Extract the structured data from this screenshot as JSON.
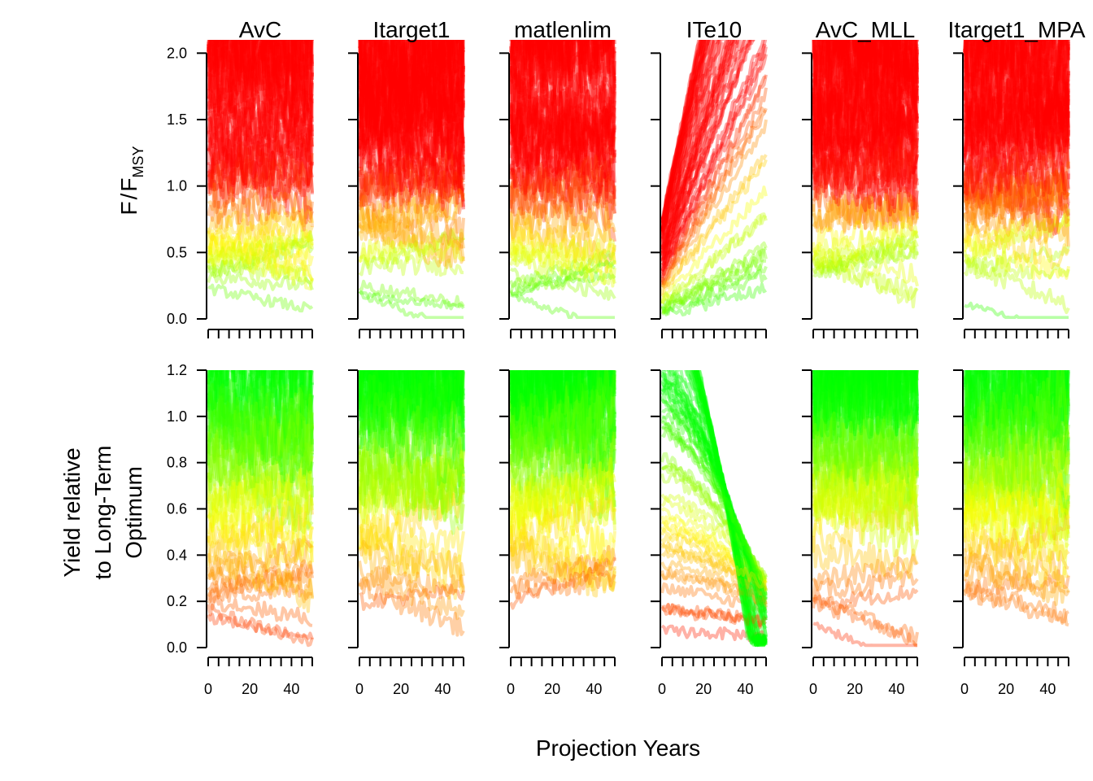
{
  "chart_data": {
    "type": "line",
    "xlabel": "Projection Years",
    "x_ticks": [
      0,
      20,
      40
    ],
    "x_minor_ticks": [
      0,
      5,
      10,
      15,
      20,
      25,
      30,
      35,
      40,
      45,
      50
    ],
    "xlim": [
      0,
      50
    ],
    "panels": [
      "AvC",
      "Itarget1",
      "matlenlim",
      "ITe10",
      "AvC_MLL",
      "Itarget1_MPA"
    ],
    "rows": [
      {
        "id": "f_fmsy",
        "ylabel_main": "F",
        "ylabel_slash": "/",
        "ylabel_f": "F",
        "ylabel_sub": "MSY",
        "ylim": [
          0,
          2.1
        ],
        "y_ticks": [
          0.0,
          0.5,
          1.0,
          1.5,
          2.0
        ],
        "y_tick_labels": [
          "0.0",
          "0.5",
          "1.0",
          "1.5",
          "2.0"
        ],
        "color_scale": "green (low) to red (high)",
        "summary": [
          {
            "panel": "AvC",
            "min_final": 0.15,
            "typical_low": 0.2,
            "median": 0.9,
            "high": 2.1
          },
          {
            "panel": "Itarget1",
            "min_final": 0.05,
            "typical_low": 0.1,
            "median": 0.6,
            "high": 2.1
          },
          {
            "panel": "matlenlim",
            "min_final": 0.05,
            "typical_low": 0.1,
            "median": 1.3,
            "high": 2.1
          },
          {
            "panel": "ITe10",
            "min_final": 0.4,
            "typical_low": 0.1,
            "median": 1.9,
            "high": 2.1
          },
          {
            "panel": "AvC_MLL",
            "min_final": 0.25,
            "typical_low": 0.3,
            "median": 1.0,
            "high": 2.1
          },
          {
            "panel": "Itarget1_MPA",
            "min_final": 0.05,
            "typical_low": 0.1,
            "median": 0.7,
            "high": 2.1
          }
        ]
      },
      {
        "id": "yield",
        "ylabel_lines": [
          "Yield relative",
          "to Long-Term",
          "Optimum"
        ],
        "ylim": [
          0,
          1.2
        ],
        "y_ticks": [
          0.0,
          0.2,
          0.4,
          0.6,
          0.8,
          1.0,
          1.2
        ],
        "y_tick_labels": [
          "0.0",
          "0.2",
          "0.4",
          "0.6",
          "0.8",
          "1.0",
          "1.2"
        ],
        "color_scale": "red (low) to green (high)",
        "summary": [
          {
            "panel": "AvC",
            "min_final": 0.02,
            "median": 0.55,
            "high": 1.2
          },
          {
            "panel": "Itarget1",
            "min_final": 0.1,
            "median": 0.6,
            "high": 1.2
          },
          {
            "panel": "matlenlim",
            "min_final": 0.05,
            "median": 0.5,
            "high": 1.2
          },
          {
            "panel": "ITe10",
            "min_final": 0.0,
            "median": 0.3,
            "high": 1.2
          },
          {
            "panel": "AvC_MLL",
            "min_final": 0.05,
            "median": 0.6,
            "high": 1.2
          },
          {
            "panel": "Itarget1_MPA",
            "min_final": 0.1,
            "median": 0.6,
            "high": 1.2
          }
        ]
      }
    ]
  }
}
